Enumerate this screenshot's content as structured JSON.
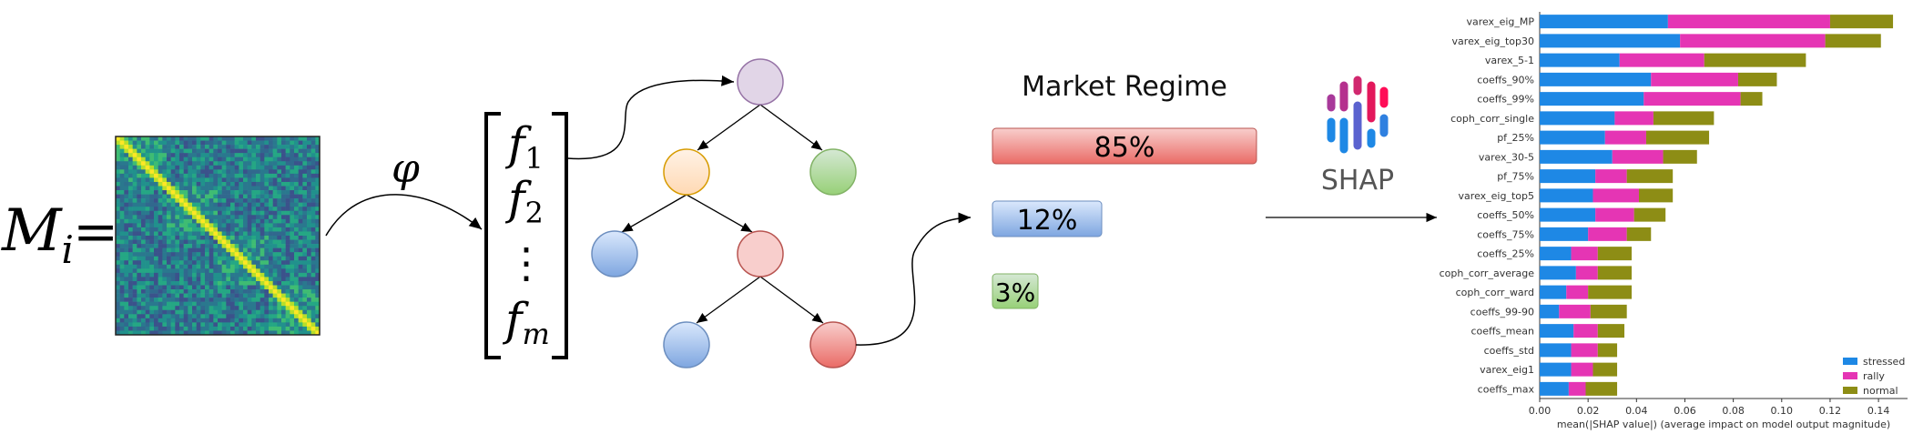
{
  "diagram": {
    "matrix_label": {
      "symbol": "M",
      "subscript": "i",
      "equals": "="
    },
    "map_symbol": "φ",
    "features": [
      {
        "symbol": "f",
        "index": "1"
      },
      {
        "symbol": "f",
        "index": "2"
      },
      {
        "symbol": "f",
        "index": "m"
      }
    ],
    "ellipsis": "⋮",
    "regime_title": "Market Regime",
    "regimes": [
      "85%",
      "12%",
      "3%"
    ],
    "explainer": "SHAP"
  },
  "chart_data": {
    "type": "stacked-barh",
    "categories": [
      "varex_eig_MP",
      "varex_eig_top30",
      "varex_5-1",
      "coeffs_90%",
      "coeffs_99%",
      "coph_corr_single",
      "pf_25%",
      "varex_30-5",
      "pf_75%",
      "varex_eig_top5",
      "coeffs_50%",
      "coeffs_75%",
      "coeffs_25%",
      "coph_corr_average",
      "coph_corr_ward",
      "coeffs_99-90",
      "coeffs_mean",
      "coeffs_std",
      "varex_eig1",
      "coeffs_max"
    ],
    "series": [
      {
        "name": "stressed",
        "color": "#1e88e5",
        "values": [
          0.053,
          0.058,
          0.033,
          0.046,
          0.043,
          0.031,
          0.027,
          0.03,
          0.023,
          0.022,
          0.023,
          0.02,
          0.013,
          0.015,
          0.011,
          0.008,
          0.014,
          0.013,
          0.013,
          0.012
        ]
      },
      {
        "name": "rally",
        "color": "#e535b4",
        "values": [
          0.067,
          0.06,
          0.035,
          0.036,
          0.04,
          0.016,
          0.017,
          0.021,
          0.013,
          0.019,
          0.016,
          0.016,
          0.011,
          0.009,
          0.009,
          0.013,
          0.01,
          0.011,
          0.009,
          0.007
        ]
      },
      {
        "name": "normal",
        "color": "#8d8d15",
        "values": [
          0.026,
          0.023,
          0.042,
          0.016,
          0.009,
          0.025,
          0.026,
          0.014,
          0.019,
          0.014,
          0.013,
          0.01,
          0.014,
          0.014,
          0.018,
          0.015,
          0.011,
          0.008,
          0.01,
          0.013
        ]
      }
    ],
    "xlabel": "mean(|SHAP value|) (average impact on model output magnitude)",
    "xlim": [
      0,
      0.152
    ],
    "xticks": [
      {
        "value": 0,
        "label": "0.00"
      },
      0.02,
      0.04,
      0.06,
      0.08,
      {
        "value": 0.1,
        "label": "0.10"
      },
      0.12,
      0.14
    ],
    "legend": "lower right"
  }
}
